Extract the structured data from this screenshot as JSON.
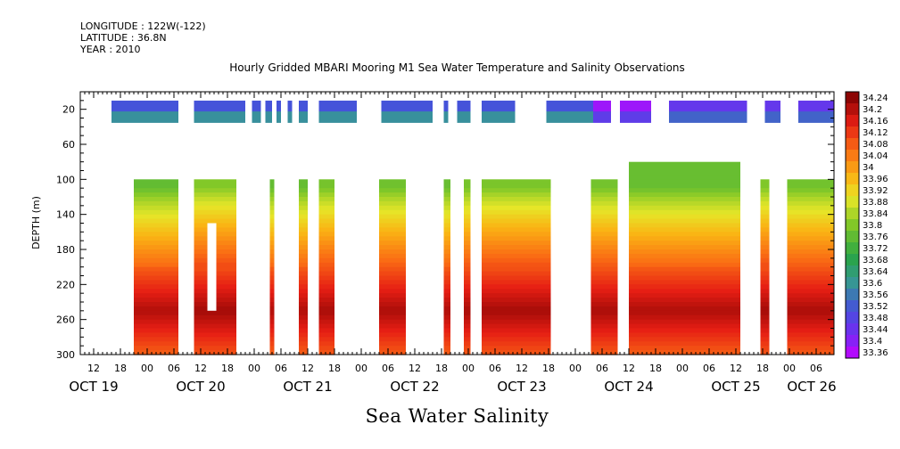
{
  "header": {
    "longitude": "LONGITUDE : 122W(-122)",
    "latitude": "LATITUDE : 36.8N",
    "year": "YEAR : 2010"
  },
  "chart_data": {
    "type": "heatmap",
    "title": "Hourly Gridded MBARI Mooring M1 Sea Water Temperature and Salinity Observations",
    "xlabel": "Sea Water Salinity",
    "ylabel": "DEPTH (m)",
    "y_ticks": [
      20,
      60,
      100,
      140,
      180,
      220,
      260,
      300
    ],
    "ylim": [
      300,
      0
    ],
    "x_hour_ticks": [
      {
        "h": 12,
        "label": "12"
      },
      {
        "h": 18,
        "label": "18"
      },
      {
        "h": 24,
        "label": "00"
      },
      {
        "h": 30,
        "label": "06"
      },
      {
        "h": 36,
        "label": "12"
      },
      {
        "h": 42,
        "label": "18"
      },
      {
        "h": 48,
        "label": "00"
      },
      {
        "h": 54,
        "label": "06"
      },
      {
        "h": 60,
        "label": "12"
      },
      {
        "h": 66,
        "label": "18"
      },
      {
        "h": 72,
        "label": "00"
      },
      {
        "h": 78,
        "label": "06"
      },
      {
        "h": 84,
        "label": "12"
      },
      {
        "h": 90,
        "label": "18"
      },
      {
        "h": 96,
        "label": "00"
      },
      {
        "h": 102,
        "label": "06"
      },
      {
        "h": 108,
        "label": "12"
      },
      {
        "h": 114,
        "label": "18"
      },
      {
        "h": 120,
        "label": "00"
      },
      {
        "h": 126,
        "label": "06"
      },
      {
        "h": 132,
        "label": "12"
      },
      {
        "h": 138,
        "label": "18"
      },
      {
        "h": 144,
        "label": "00"
      },
      {
        "h": 150,
        "label": "06"
      },
      {
        "h": 156,
        "label": "12"
      },
      {
        "h": 162,
        "label": "18"
      },
      {
        "h": 168,
        "label": "00"
      },
      {
        "h": 174,
        "label": "06"
      }
    ],
    "x_day_labels": [
      {
        "h": 12,
        "label": "OCT 19"
      },
      {
        "h": 36,
        "label": "OCT 20"
      },
      {
        "h": 60,
        "label": "OCT 21"
      },
      {
        "h": 84,
        "label": "OCT 22"
      },
      {
        "h": 108,
        "label": "OCT 23"
      },
      {
        "h": 132,
        "label": "OCT 24"
      },
      {
        "h": 156,
        "label": "OCT 25"
      },
      {
        "h": 173,
        "label": "OCT 26"
      }
    ],
    "xlim_hours": [
      9,
      178
    ],
    "colorbar": {
      "labels": [
        "34.24",
        "34.2",
        "34.16",
        "34.12",
        "34.08",
        "34.04",
        "34",
        "33.96",
        "33.92",
        "33.88",
        "33.84",
        "33.8",
        "33.76",
        "33.72",
        "33.68",
        "33.64",
        "33.6",
        "33.56",
        "33.52",
        "33.48",
        "33.44",
        "33.4",
        "33.36"
      ],
      "min": 33.36,
      "max": 34.28
    },
    "shallow_layer": {
      "depth_range": [
        10,
        35
      ],
      "gaps_hours": [
        [
          9,
          16
        ],
        [
          31,
          34.5
        ],
        [
          46,
          47.5
        ],
        [
          49.5,
          50.5
        ],
        [
          52,
          53
        ],
        [
          54,
          55.5
        ],
        [
          56.5,
          58
        ],
        [
          60,
          62.5
        ],
        [
          71,
          76.5
        ],
        [
          88,
          90.5
        ],
        [
          91.5,
          93.5
        ],
        [
          96.5,
          99
        ],
        [
          106.5,
          113.5
        ],
        [
          128,
          130
        ],
        [
          137,
          141
        ],
        [
          158.5,
          162.5
        ],
        [
          166,
          170
        ]
      ],
      "segments": [
        {
          "h0": 16,
          "h1": 124,
          "v": 33.56
        },
        {
          "h0": 124,
          "h1": 141,
          "v": 33.43
        },
        {
          "h0": 141,
          "h1": 178,
          "v": 33.5
        }
      ]
    },
    "deep_profile": {
      "depth_range": [
        95,
        300
      ],
      "surface_value": 33.8,
      "base_value": 34.1,
      "peak_depth": 250,
      "peak_value": 34.23,
      "data_blocks_hours": [
        {
          "h0": 21,
          "h1": 31,
          "top": 100
        },
        {
          "h0": 34.5,
          "h1": 44,
          "top": 100
        },
        {
          "h0": 51.5,
          "h1": 52.5,
          "top": 100
        },
        {
          "h0": 58,
          "h1": 60,
          "top": 100
        },
        {
          "h0": 62.5,
          "h1": 66,
          "top": 100
        },
        {
          "h0": 76,
          "h1": 82,
          "top": 100
        },
        {
          "h0": 90.5,
          "h1": 92,
          "top": 100
        },
        {
          "h0": 95,
          "h1": 96.5,
          "top": 100
        },
        {
          "h0": 99,
          "h1": 114.5,
          "top": 100
        },
        {
          "h0": 123.5,
          "h1": 129.5,
          "top": 100
        },
        {
          "h0": 132,
          "h1": 157,
          "top": 80
        },
        {
          "h0": 161.5,
          "h1": 163.5,
          "top": 100
        },
        {
          "h0": 167.5,
          "h1": 178,
          "top": 100
        }
      ],
      "notches": [
        {
          "h0": 37.5,
          "h1": 39.5,
          "d0": 150,
          "d1": 250
        },
        {
          "h0": 159.5,
          "h1": 161.5,
          "d0": 200,
          "d1": 300
        }
      ]
    }
  }
}
